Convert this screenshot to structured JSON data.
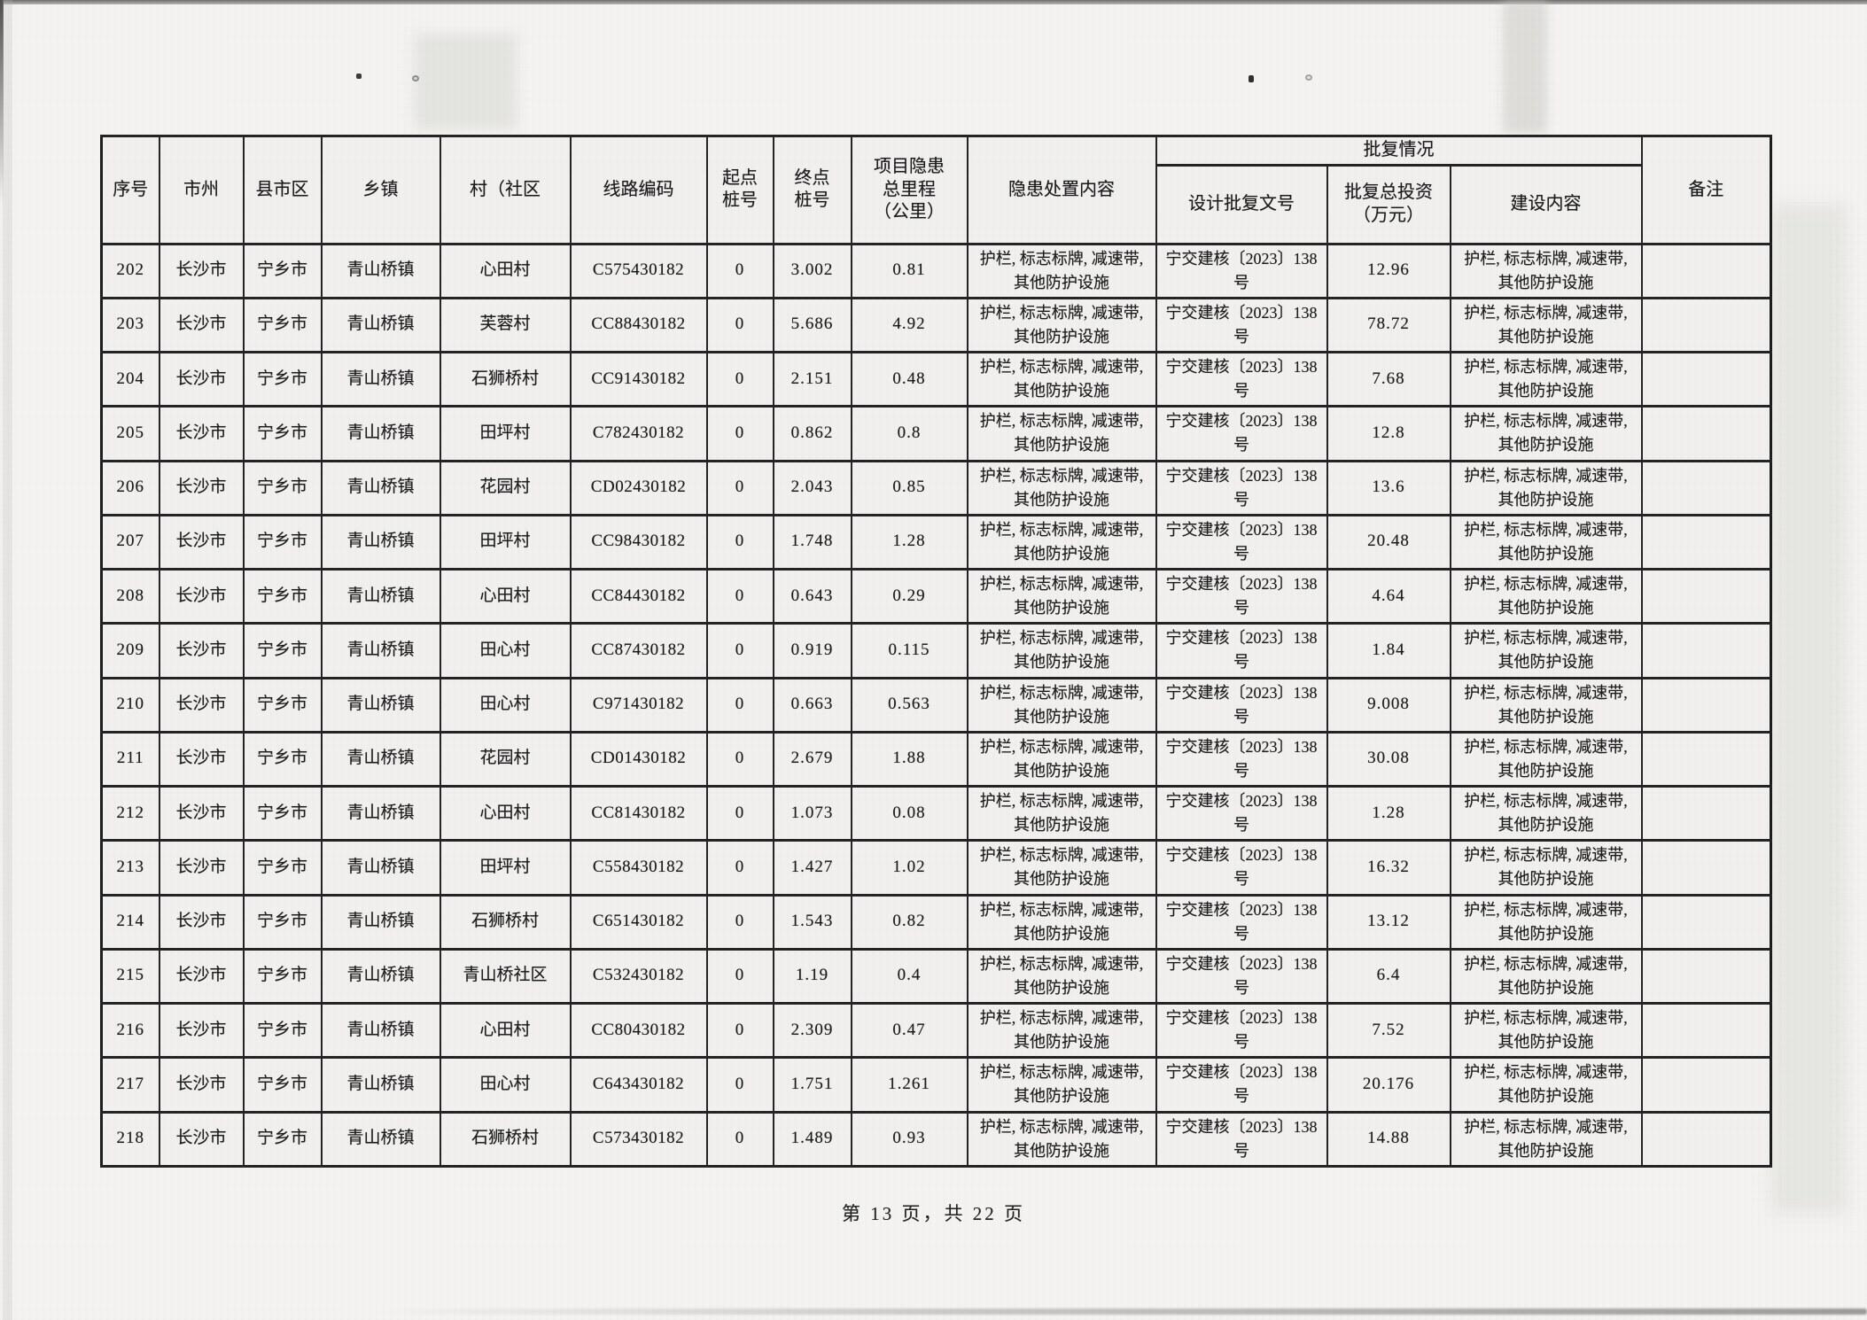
{
  "page": {
    "footer": "第 13 页，共 22 页"
  },
  "colors": {
    "page_bg": "#f4f3f1",
    "cell_bg": "#f1f0ee",
    "border": "#232323",
    "ink": "#1b1b1b"
  },
  "table": {
    "group_header": "批复情况",
    "headers": {
      "seq": "序号",
      "city": "市州",
      "county": "县市区",
      "town": "乡镇",
      "village": "村（社区",
      "code": "线路编码",
      "start_stake": "起点\n桩号",
      "end_stake": "终点\n桩号",
      "mileage": "项目隐患\n总里程\n（公里）",
      "treatment": "隐患处置内容",
      "doc_no": "设计批复文号",
      "investment": "批复总投资\n（万元）",
      "construction": "建设内容",
      "remark": "备注"
    },
    "rows": [
      [
        "202",
        "长沙市",
        "宁乡市",
        "青山桥镇",
        "心田村",
        "C575430182",
        "0",
        "3.002",
        "0.81",
        "护栏, 标志标牌, 减速带, 其他防护设施",
        "宁交建核〔2023〕138号",
        "12.96",
        "护栏, 标志标牌, 减速带, 其他防护设施",
        ""
      ],
      [
        "203",
        "长沙市",
        "宁乡市",
        "青山桥镇",
        "芙蓉村",
        "CC88430182",
        "0",
        "5.686",
        "4.92",
        "护栏, 标志标牌, 减速带, 其他防护设施",
        "宁交建核〔2023〕138号",
        "78.72",
        "护栏, 标志标牌, 减速带, 其他防护设施",
        ""
      ],
      [
        "204",
        "长沙市",
        "宁乡市",
        "青山桥镇",
        "石狮桥村",
        "CC91430182",
        "0",
        "2.151",
        "0.48",
        "护栏, 标志标牌, 减速带, 其他防护设施",
        "宁交建核〔2023〕138号",
        "7.68",
        "护栏, 标志标牌, 减速带, 其他防护设施",
        ""
      ],
      [
        "205",
        "长沙市",
        "宁乡市",
        "青山桥镇",
        "田坪村",
        "C782430182",
        "0",
        "0.862",
        "0.8",
        "护栏, 标志标牌, 减速带, 其他防护设施",
        "宁交建核〔2023〕138号",
        "12.8",
        "护栏, 标志标牌, 减速带, 其他防护设施",
        ""
      ],
      [
        "206",
        "长沙市",
        "宁乡市",
        "青山桥镇",
        "花园村",
        "CD02430182",
        "0",
        "2.043",
        "0.85",
        "护栏, 标志标牌, 减速带, 其他防护设施",
        "宁交建核〔2023〕138号",
        "13.6",
        "护栏, 标志标牌, 减速带, 其他防护设施",
        ""
      ],
      [
        "207",
        "长沙市",
        "宁乡市",
        "青山桥镇",
        "田坪村",
        "CC98430182",
        "0",
        "1.748",
        "1.28",
        "护栏, 标志标牌, 减速带, 其他防护设施",
        "宁交建核〔2023〕138号",
        "20.48",
        "护栏, 标志标牌, 减速带, 其他防护设施",
        ""
      ],
      [
        "208",
        "长沙市",
        "宁乡市",
        "青山桥镇",
        "心田村",
        "CC84430182",
        "0",
        "0.643",
        "0.29",
        "护栏, 标志标牌, 减速带, 其他防护设施",
        "宁交建核〔2023〕138号",
        "4.64",
        "护栏, 标志标牌, 减速带, 其他防护设施",
        ""
      ],
      [
        "209",
        "长沙市",
        "宁乡市",
        "青山桥镇",
        "田心村",
        "CC87430182",
        "0",
        "0.919",
        "0.115",
        "护栏, 标志标牌, 减速带, 其他防护设施",
        "宁交建核〔2023〕138号",
        "1.84",
        "护栏, 标志标牌, 减速带, 其他防护设施",
        ""
      ],
      [
        "210",
        "长沙市",
        "宁乡市",
        "青山桥镇",
        "田心村",
        "C971430182",
        "0",
        "0.663",
        "0.563",
        "护栏, 标志标牌, 减速带, 其他防护设施",
        "宁交建核〔2023〕138号",
        "9.008",
        "护栏, 标志标牌, 减速带, 其他防护设施",
        ""
      ],
      [
        "211",
        "长沙市",
        "宁乡市",
        "青山桥镇",
        "花园村",
        "CD01430182",
        "0",
        "2.679",
        "1.88",
        "护栏, 标志标牌, 减速带, 其他防护设施",
        "宁交建核〔2023〕138号",
        "30.08",
        "护栏, 标志标牌, 减速带, 其他防护设施",
        ""
      ],
      [
        "212",
        "长沙市",
        "宁乡市",
        "青山桥镇",
        "心田村",
        "CC81430182",
        "0",
        "1.073",
        "0.08",
        "护栏, 标志标牌, 减速带, 其他防护设施",
        "宁交建核〔2023〕138号",
        "1.28",
        "护栏, 标志标牌, 减速带, 其他防护设施",
        ""
      ],
      [
        "213",
        "长沙市",
        "宁乡市",
        "青山桥镇",
        "田坪村",
        "C558430182",
        "0",
        "1.427",
        "1.02",
        "护栏, 标志标牌, 减速带, 其他防护设施",
        "宁交建核〔2023〕138号",
        "16.32",
        "护栏, 标志标牌, 减速带, 其他防护设施",
        ""
      ],
      [
        "214",
        "长沙市",
        "宁乡市",
        "青山桥镇",
        "石狮桥村",
        "C651430182",
        "0",
        "1.543",
        "0.82",
        "护栏, 标志标牌, 减速带, 其他防护设施",
        "宁交建核〔2023〕138号",
        "13.12",
        "护栏, 标志标牌, 减速带, 其他防护设施",
        ""
      ],
      [
        "215",
        "长沙市",
        "宁乡市",
        "青山桥镇",
        "青山桥社区",
        "C532430182",
        "0",
        "1.19",
        "0.4",
        "护栏, 标志标牌, 减速带, 其他防护设施",
        "宁交建核〔2023〕138号",
        "6.4",
        "护栏, 标志标牌, 减速带, 其他防护设施",
        ""
      ],
      [
        "216",
        "长沙市",
        "宁乡市",
        "青山桥镇",
        "心田村",
        "CC80430182",
        "0",
        "2.309",
        "0.47",
        "护栏, 标志标牌, 减速带, 其他防护设施",
        "宁交建核〔2023〕138号",
        "7.52",
        "护栏, 标志标牌, 减速带, 其他防护设施",
        ""
      ],
      [
        "217",
        "长沙市",
        "宁乡市",
        "青山桥镇",
        "田心村",
        "C643430182",
        "0",
        "1.751",
        "1.261",
        "护栏, 标志标牌, 减速带, 其他防护设施",
        "宁交建核〔2023〕138号",
        "20.176",
        "护栏, 标志标牌, 减速带, 其他防护设施",
        ""
      ],
      [
        "218",
        "长沙市",
        "宁乡市",
        "青山桥镇",
        "石狮桥村",
        "C573430182",
        "0",
        "1.489",
        "0.93",
        "护栏, 标志标牌, 减速带, 其他防护设施",
        "宁交建核〔2023〕138号",
        "14.88",
        "护栏, 标志标牌, 减速带, 其他防护设施",
        ""
      ]
    ]
  }
}
